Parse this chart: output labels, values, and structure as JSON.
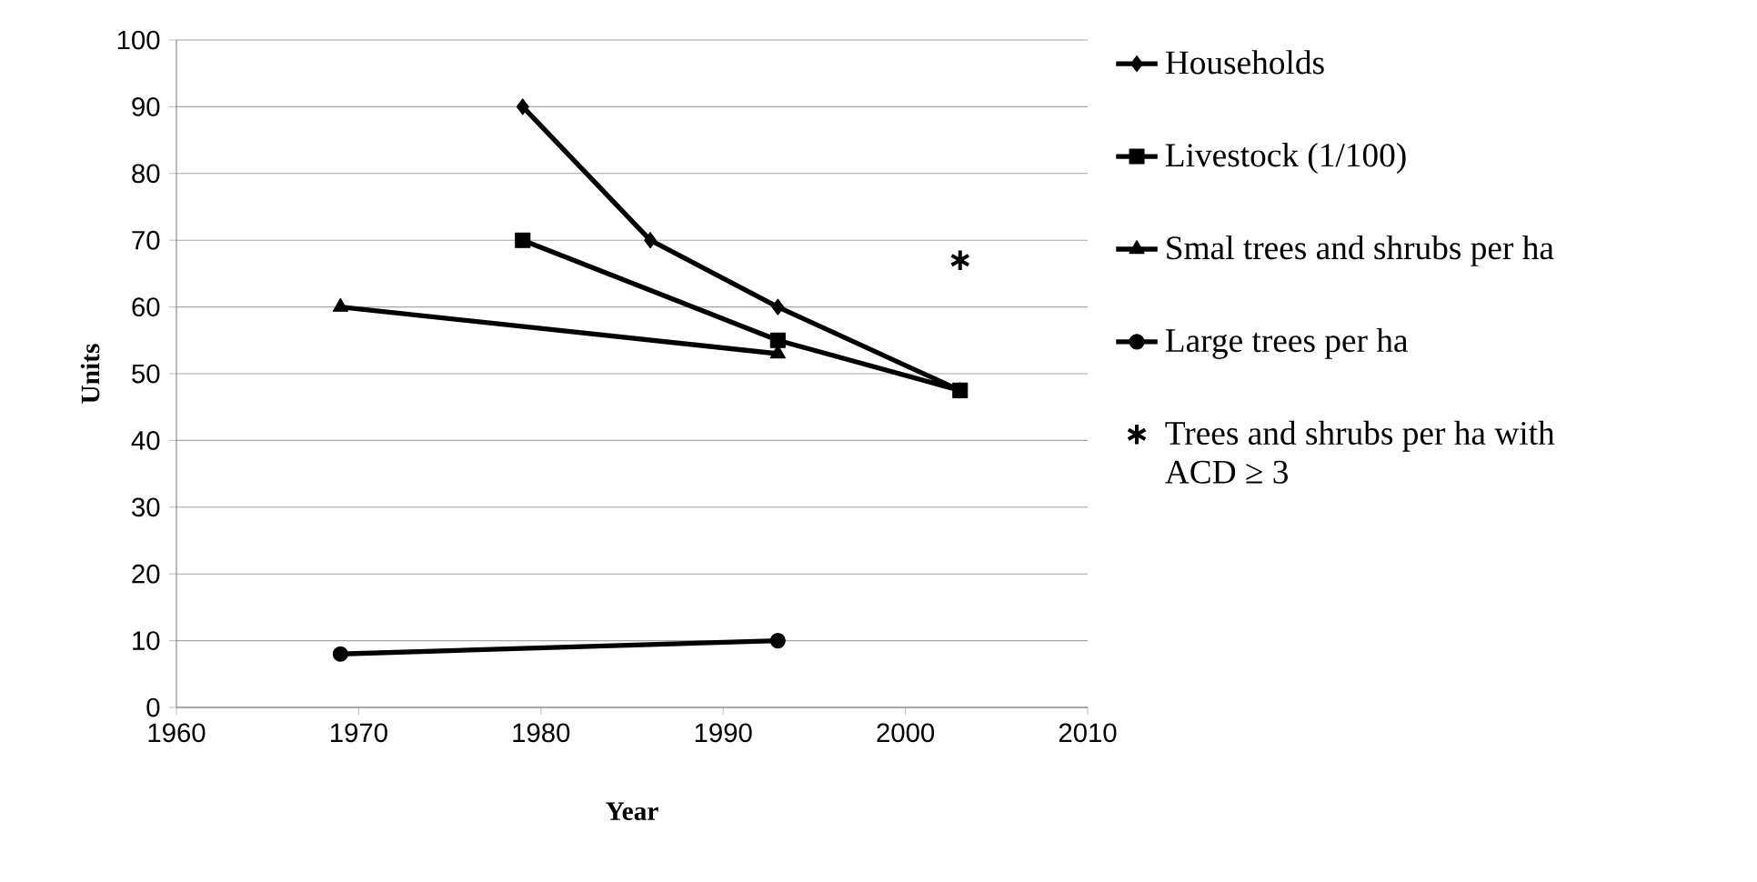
{
  "chart_data": {
    "type": "line",
    "xlabel": "Year",
    "ylabel": "Units",
    "xlim": [
      1960,
      2010
    ],
    "xticks": [
      1960,
      1970,
      1980,
      1990,
      2000,
      2010
    ],
    "ylim": [
      0,
      100
    ],
    "yticks": [
      0,
      10,
      20,
      30,
      40,
      50,
      60,
      70,
      80,
      90,
      100
    ],
    "grid": "y",
    "legend": "right",
    "series": [
      {
        "name": "Households",
        "color": "#000000",
        "marker": "diamond",
        "x": [
          1979,
          1986,
          1993,
          2003
        ],
        "values": [
          90,
          70,
          60,
          47.5
        ]
      },
      {
        "name": "Livestock (1/100)",
        "color": "#000000",
        "marker": "square",
        "x": [
          1979,
          1993,
          2003
        ],
        "values": [
          70,
          55,
          47.5
        ]
      },
      {
        "name": "Smal trees and shrubs per ha",
        "color": "#000000",
        "marker": "triangle",
        "x": [
          1969,
          1993
        ],
        "values": [
          60,
          53
        ]
      },
      {
        "name": "Large trees per ha",
        "color": "#000000",
        "marker": "circle",
        "x": [
          1969,
          1993
        ],
        "values": [
          8,
          10
        ]
      },
      {
        "name": "Trees and shrubs per ha with ACD ≥ 3",
        "type": "scatter",
        "color": "#000000",
        "marker": "cross",
        "x": [
          2003
        ],
        "values": [
          67
        ]
      }
    ]
  }
}
